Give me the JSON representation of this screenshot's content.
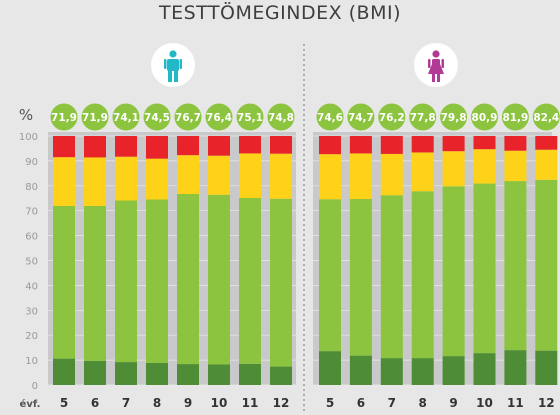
{
  "chart_data": {
    "type": "bar",
    "stacked": true,
    "title": "TESTTÖMEGINDEX (BMI)",
    "ylabel": "%",
    "ylim": [
      0,
      100
    ],
    "yticks": [
      0,
      10,
      20,
      30,
      40,
      50,
      60,
      70,
      80,
      90,
      100
    ],
    "x_axis_label": "évf.",
    "categories": [
      "5",
      "6",
      "7",
      "8",
      "9",
      "10",
      "11",
      "12"
    ],
    "grid": true,
    "panels": [
      {
        "icon": "male-person-icon",
        "headline_values": [
          "71,9",
          "71,9",
          "74,1",
          "74,5",
          "76,7",
          "76,4",
          "75,1",
          "74,8"
        ],
        "series": [
          {
            "color": "#4e8c35",
            "values": [
              10.6,
              9.7,
              9.2,
              8.9,
              8.4,
              8.3,
              8.5,
              7.4
            ]
          },
          {
            "color": "#8cc43f",
            "values": [
              61.3,
              62.2,
              64.9,
              65.6,
              68.3,
              68.1,
              66.6,
              67.4
            ]
          },
          {
            "color": "#ffd21a",
            "values": [
              19.6,
              19.5,
              17.6,
              16.4,
              15.6,
              15.7,
              17.9,
              18.1
            ]
          },
          {
            "color": "#e8232a",
            "values": [
              8.5,
              8.6,
              8.3,
              9.1,
              7.7,
              7.9,
              7.0,
              7.1
            ]
          }
        ]
      },
      {
        "icon": "female-person-icon",
        "headline_values": [
          "74,6",
          "74,7",
          "76,2",
          "77,8",
          "79,8",
          "80,9",
          "81,9",
          "82,4"
        ],
        "series": [
          {
            "color": "#4e8c35",
            "values": [
              13.6,
              11.8,
              10.8,
              10.8,
              11.6,
              12.8,
              14.0,
              13.8
            ]
          },
          {
            "color": "#8cc43f",
            "values": [
              61.0,
              62.9,
              65.4,
              67.0,
              68.2,
              68.1,
              67.9,
              68.6
            ]
          },
          {
            "color": "#ffd21a",
            "values": [
              18.1,
              18.3,
              16.6,
              15.6,
              14.1,
              13.8,
              12.2,
              12.1
            ]
          },
          {
            "color": "#e8232a",
            "values": [
              7.3,
              7.0,
              7.2,
              6.6,
              6.1,
              5.3,
              5.9,
              5.5
            ]
          }
        ]
      }
    ]
  },
  "colors": {
    "background": "#e7e7e8",
    "panel": "#c9c9cb",
    "badge": "#8cc43f",
    "male_icon": "#22b8c8",
    "female_icon": "#b03a96",
    "text": "#3f3f3f"
  }
}
